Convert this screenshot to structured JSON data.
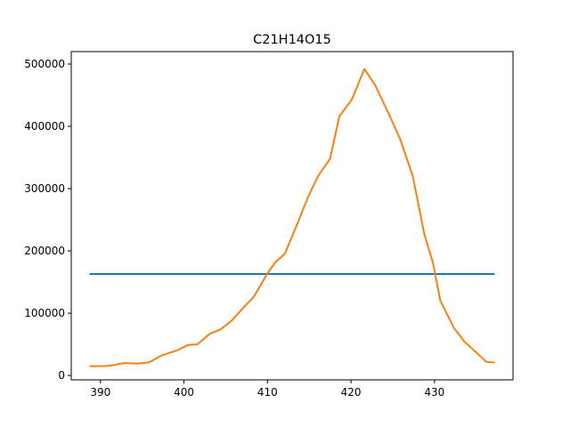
{
  "chart_data": {
    "type": "line",
    "title": "C21H14O15",
    "xlabel": "",
    "ylabel": "",
    "xlim": [
      386.5,
      439.4
    ],
    "ylim": [
      -7000,
      520000
    ],
    "x_ticks": [
      390,
      400,
      410,
      420,
      430
    ],
    "y_ticks": [
      0,
      100000,
      200000,
      300000,
      400000,
      500000
    ],
    "grid": false,
    "legend": "none",
    "series": [
      {
        "color": "#1f77b4",
        "x": [
          388.8,
          437.1
        ],
        "y": [
          163000,
          163000
        ]
      },
      {
        "color": "#ff7f0e",
        "x": [
          388.8,
          390.4,
          391.3,
          392.8,
          394.4,
          395.8,
          397.3,
          399.1,
          400.5,
          401.6,
          403.1,
          404.4,
          405.7,
          407.2,
          408.4,
          410.0,
          410.9,
          412.1,
          413.5,
          414.9,
          416.1,
          417.5,
          418.6,
          420.1,
          421.6,
          422.9,
          424.6,
          425.9,
          427.4,
          428.8,
          429.8,
          430.7,
          432.3,
          433.6,
          435.0,
          436.2,
          437.1
        ],
        "y": [
          15000,
          15000,
          16000,
          20000,
          19000,
          21000,
          32000,
          40000,
          49000,
          50000,
          67000,
          74000,
          88000,
          110000,
          127000,
          164000,
          181000,
          196000,
          241000,
          288000,
          321000,
          348000,
          416000,
          443000,
          492000,
          466000,
          418000,
          379000,
          320000,
          226000,
          182000,
          120000,
          77000,
          54000,
          37000,
          22000,
          21000
        ]
      }
    ]
  }
}
